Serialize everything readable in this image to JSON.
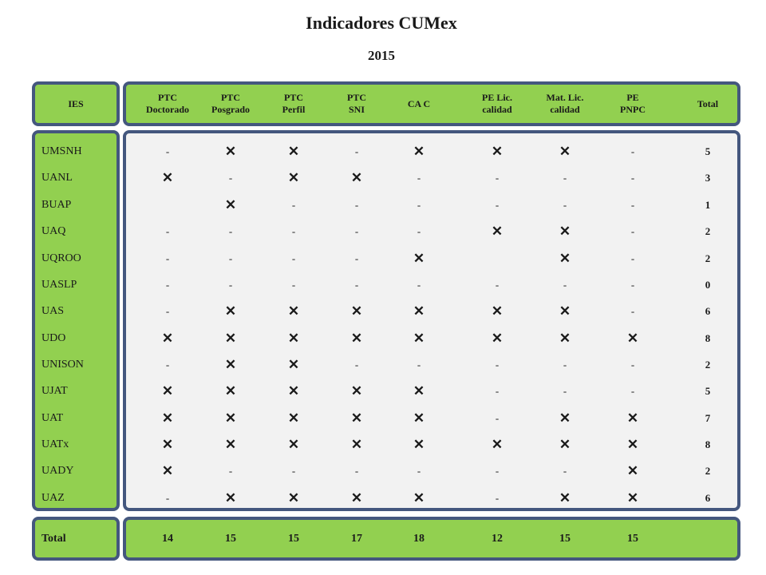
{
  "title": "Indicadores CUMex",
  "subtitle": "2015",
  "colors": {
    "accent": "#92d050",
    "border": "#44577e",
    "panel": "#f2f2f2"
  },
  "header": {
    "ies": "IES",
    "columns": [
      "PTC\nDoctorado",
      "PTC\nPosgrado",
      "PTC\nPerfil",
      "PTC\nSNI",
      "CA C",
      "PE Lic.\ncalidad",
      "Mat. Lic.\ncalidad",
      "PE\nPNPC",
      "Total"
    ]
  },
  "rows": [
    {
      "name": "UMSNH",
      "cells": [
        "-",
        "✕",
        "✕",
        "-",
        "✕",
        "✕",
        "✕",
        "-"
      ],
      "total": "5"
    },
    {
      "name": "UANL",
      "cells": [
        "✕",
        "-",
        "✕",
        "✕",
        "-",
        "-",
        "-",
        "-"
      ],
      "total": "3"
    },
    {
      "name": "BUAP",
      "cells": [
        "",
        "✕",
        "-",
        "-",
        "-",
        "-",
        "-",
        "-"
      ],
      "total": "1"
    },
    {
      "name": "UAQ",
      "cells": [
        "-",
        "-",
        "-",
        "-",
        "-",
        "✕",
        "✕",
        "-"
      ],
      "total": "2"
    },
    {
      "name": "UQROO",
      "cells": [
        "-",
        "-",
        "-",
        "-",
        "✕",
        "",
        "✕",
        "-"
      ],
      "total": "2"
    },
    {
      "name": "UASLP",
      "cells": [
        "-",
        "-",
        "-",
        "-",
        "-",
        "-",
        "-",
        "-"
      ],
      "total": "0"
    },
    {
      "name": "UAS",
      "cells": [
        "-",
        "✕",
        "✕",
        "✕",
        "✕",
        "✕",
        "✕",
        "-"
      ],
      "total": "6"
    },
    {
      "name": "UDO",
      "cells": [
        "✕",
        "✕",
        "✕",
        "✕",
        "✕",
        "✕",
        "✕",
        "✕"
      ],
      "total": "8"
    },
    {
      "name": "UNISON",
      "cells": [
        "-",
        "✕",
        "✕",
        "-",
        "-",
        "-",
        "-",
        "-"
      ],
      "total": "2"
    },
    {
      "name": "UJAT",
      "cells": [
        "✕",
        "✕",
        "✕",
        "✕",
        "✕",
        "-",
        "-",
        "-"
      ],
      "total": "5"
    },
    {
      "name": "UAT",
      "cells": [
        "✕",
        "✕",
        "✕",
        "✕",
        "✕",
        "-",
        "✕",
        "✕"
      ],
      "total": "7"
    },
    {
      "name": "UATx",
      "cells": [
        "✕",
        "✕",
        "✕",
        "✕",
        "✕",
        "✕",
        "✕",
        "✕"
      ],
      "total": "8"
    },
    {
      "name": "UADY",
      "cells": [
        "✕",
        "-",
        "-",
        "-",
        "-",
        "-",
        "-",
        "✕"
      ],
      "total": "2"
    },
    {
      "name": "UAZ",
      "cells": [
        "-",
        "✕",
        "✕",
        "✕",
        "✕",
        "-",
        "✕",
        "✕"
      ],
      "total": "6"
    }
  ],
  "totals": {
    "label": "Total",
    "values": [
      "14",
      "15",
      "15",
      "17",
      "18",
      "12",
      "15",
      "15"
    ]
  }
}
